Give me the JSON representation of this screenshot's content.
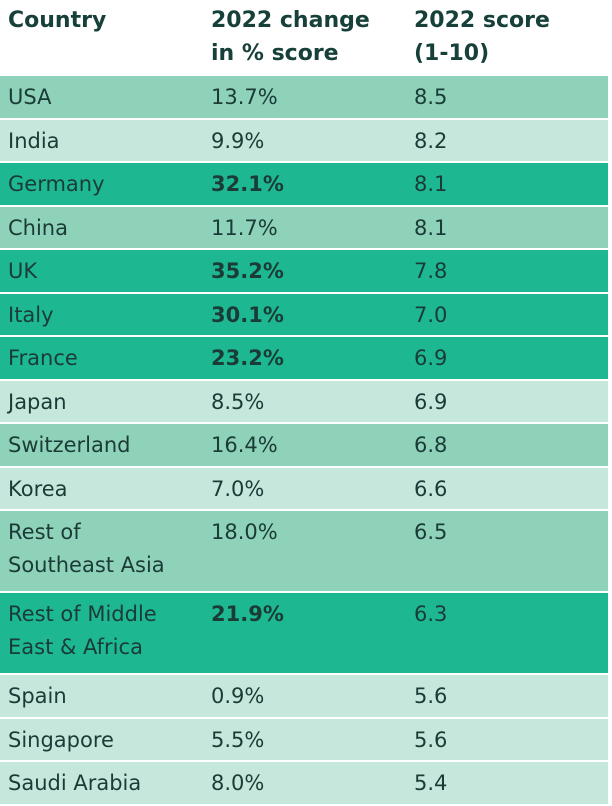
{
  "colors": {
    "dark": "#1db892",
    "mid": "#8ed2b9",
    "light": "#c6e8dc"
  },
  "headers": {
    "country": "Country",
    "change_line1": "2022 change",
    "change_line2": "in % score",
    "score_line1": "2022 score",
    "score_line2": "(1-10)"
  },
  "rows": [
    {
      "country": "USA",
      "country2": "",
      "change": "13.7%",
      "score": "8.5",
      "tone": "mid",
      "bold": false
    },
    {
      "country": "India",
      "country2": "",
      "change": "9.9%",
      "score": "8.2",
      "tone": "light",
      "bold": false
    },
    {
      "country": "Germany",
      "country2": "",
      "change": "32.1%",
      "score": "8.1",
      "tone": "dark",
      "bold": true
    },
    {
      "country": "China",
      "country2": "",
      "change": "11.7%",
      "score": "8.1",
      "tone": "mid",
      "bold": false
    },
    {
      "country": "UK",
      "country2": "",
      "change": "35.2%",
      "score": "7.8",
      "tone": "dark",
      "bold": true
    },
    {
      "country": "Italy",
      "country2": "",
      "change": "30.1%",
      "score": "7.0",
      "tone": "dark",
      "bold": true
    },
    {
      "country": "France",
      "country2": "",
      "change": "23.2%",
      "score": "6.9",
      "tone": "dark",
      "bold": true
    },
    {
      "country": "Japan",
      "country2": "",
      "change": "8.5%",
      "score": "6.9",
      "tone": "light",
      "bold": false
    },
    {
      "country": "Switzerland",
      "country2": "",
      "change": "16.4%",
      "score": "6.8",
      "tone": "mid",
      "bold": false
    },
    {
      "country": "Korea",
      "country2": "",
      "change": "7.0%",
      "score": "6.6",
      "tone": "light",
      "bold": false
    },
    {
      "country": "Rest of",
      "country2": "Southeast Asia",
      "change": "18.0%",
      "score": "6.5",
      "tone": "mid",
      "bold": false
    },
    {
      "country": "Rest of Middle",
      "country2": "East & Africa",
      "change": "21.9%",
      "score": "6.3",
      "tone": "dark",
      "bold": true
    },
    {
      "country": "Spain",
      "country2": "",
      "change": "0.9%",
      "score": "5.6",
      "tone": "light",
      "bold": false
    },
    {
      "country": "Singapore",
      "country2": "",
      "change": "5.5%",
      "score": "5.6",
      "tone": "light",
      "bold": false
    },
    {
      "country": "Saudi Arabia",
      "country2": "",
      "change": "8.0%",
      "score": "5.4",
      "tone": "light",
      "bold": false
    }
  ]
}
